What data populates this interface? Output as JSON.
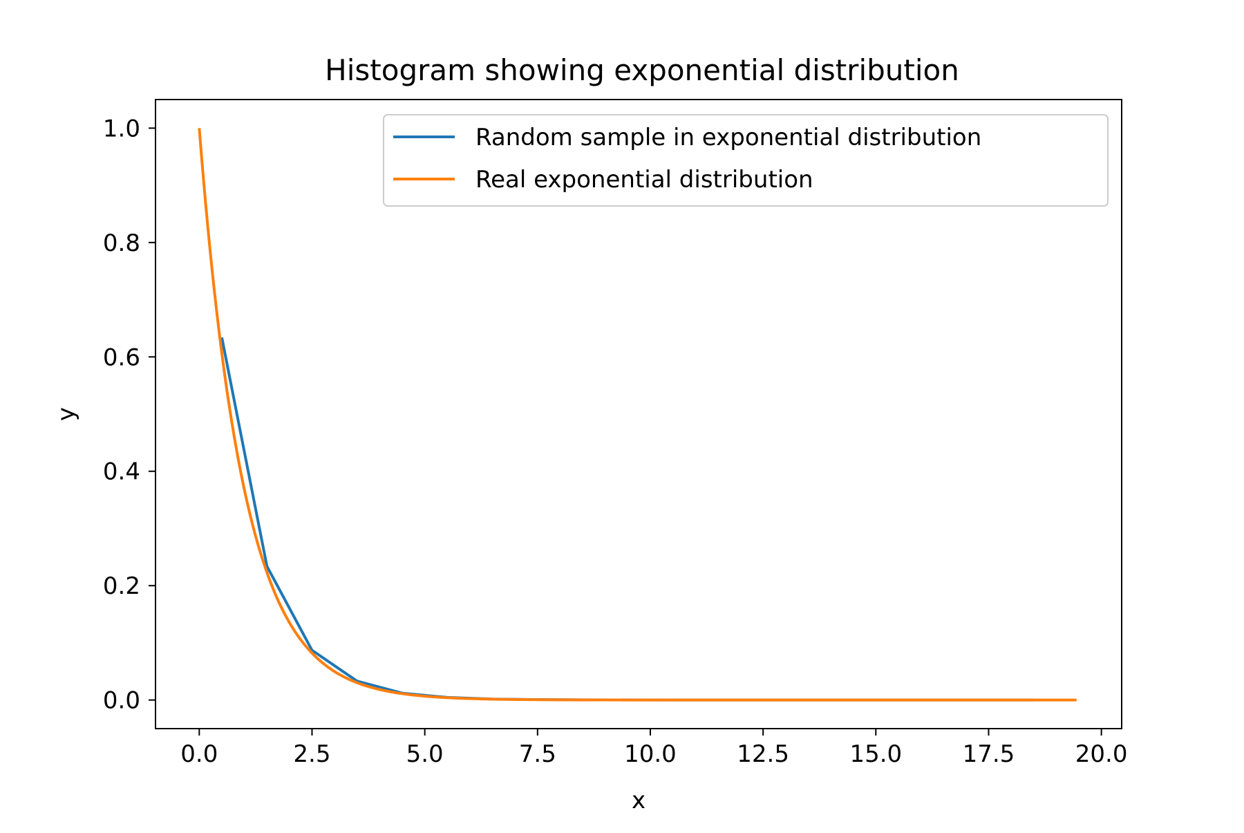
{
  "chart_data": {
    "type": "line",
    "title": "Histogram showing exponential distribution",
    "xlabel": "x",
    "ylabel": "y",
    "xlim": [
      -0.97,
      20.45
    ],
    "ylim": [
      -0.05,
      1.05
    ],
    "xticks": [
      0.0,
      2.5,
      5.0,
      7.5,
      10.0,
      12.5,
      15.0,
      17.5,
      20.0
    ],
    "xtick_labels": [
      "0.0",
      "2.5",
      "5.0",
      "7.5",
      "10.0",
      "12.5",
      "15.0",
      "17.5",
      "20.0"
    ],
    "yticks": [
      0.0,
      0.2,
      0.4,
      0.6,
      0.8,
      1.0
    ],
    "ytick_labels": [
      "0.0",
      "0.2",
      "0.4",
      "0.6",
      "0.8",
      "1.0"
    ],
    "grid": false,
    "legend_position": "top-right",
    "series": [
      {
        "name": "Random sample in exponential distribution",
        "color": "#1f77b4",
        "x": [
          0.5,
          1.5,
          2.5,
          3.5,
          4.5,
          5.5,
          6.5,
          7.5,
          8.5,
          9.5,
          10.5,
          11.5,
          12.5,
          13.5,
          14.5,
          15.5,
          16.5,
          17.5,
          18.5
        ],
        "y": [
          0.634,
          0.234,
          0.087,
          0.033,
          0.012,
          0.0045,
          0.0017,
          0.0007,
          0.0003,
          0.0001,
          5e-05,
          2e-05,
          1e-05,
          0.0,
          0.0,
          0.0,
          0.0,
          0.0,
          0.0
        ]
      },
      {
        "name": "Real exponential distribution",
        "color": "#ff7f0e",
        "function": "exp(-x)",
        "x_range": [
          0.0,
          19.45
        ]
      }
    ]
  }
}
